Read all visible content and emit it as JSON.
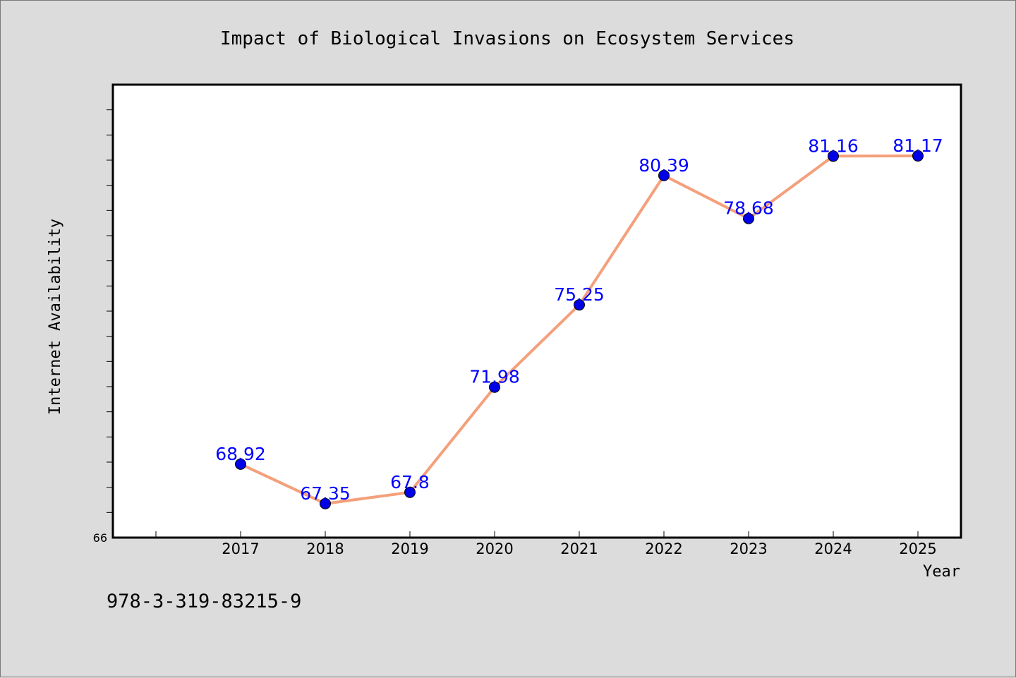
{
  "chart_data": {
    "type": "line",
    "title": "Impact of Biological Invasions on Ecosystem Services",
    "xlabel": "Year",
    "ylabel": "Internet Availability",
    "categories": [
      "2017",
      "2018",
      "2019",
      "2020",
      "2021",
      "2022",
      "2023",
      "2024",
      "2025"
    ],
    "series": [
      {
        "values": [
          68.92,
          67.35,
          67.8,
          71.98,
          75.25,
          80.39,
          78.68,
          81.16,
          81.17
        ]
      }
    ],
    "data_labels": [
      "68.92",
      "67.35",
      "67.8",
      "71.98",
      "75.25",
      "80.39",
      "78.68",
      "81.16",
      "81.17"
    ],
    "ylim": [
      66,
      84
    ],
    "y_tick_labels": [
      "66"
    ],
    "grid": false,
    "legend": "none",
    "colors": {
      "line": "#f4a07c",
      "marker": "#0000e6",
      "data_label": "#0000ff",
      "plot_bg": "#ffffff",
      "page_bg": "#dcdcdc"
    }
  },
  "footer": {
    "id_text": "978-3-319-83215-9"
  }
}
